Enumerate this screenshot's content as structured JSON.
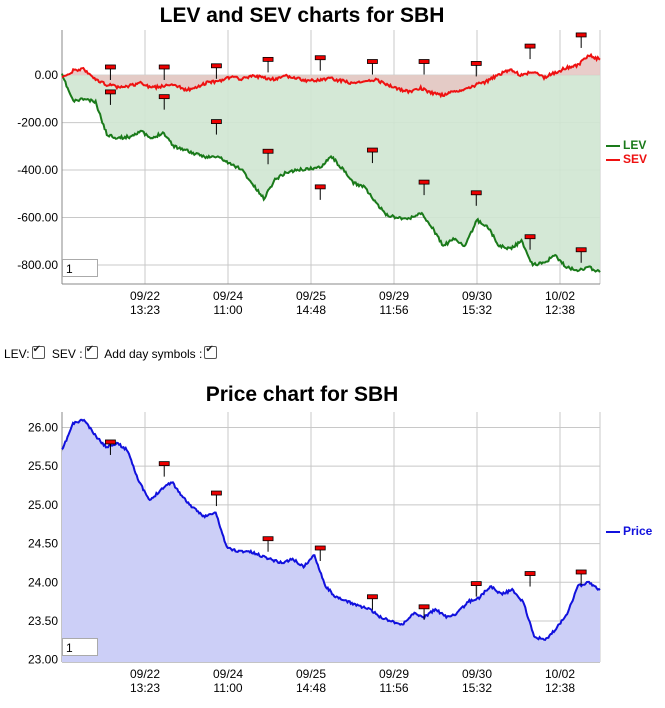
{
  "chart1": {
    "title": "LEV and SEV charts for SBH",
    "range_value": "1",
    "legend": [
      {
        "label": "LEV",
        "color": "#1a7a1a"
      },
      {
        "label": "SEV",
        "color": "#ee1111"
      }
    ]
  },
  "chart2": {
    "title": "Price chart for SBH",
    "range_value": "1",
    "legend": [
      {
        "label": "Price",
        "color": "#1111dd"
      }
    ]
  },
  "controls": {
    "lev_label": "LEV:",
    "sev_label": "SEV :",
    "day_label": "Add day symbols :"
  },
  "chart_data": [
    {
      "type": "area",
      "title": "LEV and SEV charts for SBH",
      "x_tick_labels": [
        [
          "09/22",
          "13:23"
        ],
        [
          "09/24",
          "11:00"
        ],
        [
          "09/25",
          "14:48"
        ],
        [
          "09/29",
          "11:56"
        ],
        [
          "09/30",
          "15:32"
        ],
        [
          "10/02",
          "12:38"
        ]
      ],
      "y_tick_labels": [
        "0.00",
        "-200.00",
        "-400.00",
        "-600.00",
        "-800.00"
      ],
      "ylim": [
        -880,
        190
      ],
      "grid": true,
      "legend_position": "right",
      "series": [
        {
          "name": "LEV",
          "color": "#1a7a1a",
          "fill": "#cfe6d2",
          "values": [
            0,
            -110,
            -100,
            -115,
            -250,
            -265,
            -260,
            -235,
            -270,
            -240,
            -300,
            -315,
            -335,
            -345,
            -345,
            -375,
            -395,
            -460,
            -520,
            -440,
            -410,
            -400,
            -395,
            -390,
            -340,
            -395,
            -455,
            -470,
            -540,
            -590,
            -600,
            -605,
            -580,
            -640,
            -720,
            -690,
            -720,
            -610,
            -640,
            -720,
            -730,
            -700,
            -800,
            -790,
            -760,
            -810,
            -820,
            -810,
            -830
          ]
        },
        {
          "name": "SEV",
          "color": "#ee1111",
          "fill": "#e6c8c4",
          "values": [
            -15,
            20,
            25,
            -20,
            -40,
            -50,
            -45,
            -35,
            -55,
            -45,
            -40,
            -60,
            -55,
            -30,
            -25,
            -10,
            -15,
            -5,
            -10,
            -20,
            -5,
            -15,
            -25,
            -20,
            -15,
            -25,
            -35,
            -30,
            -20,
            -40,
            -60,
            -70,
            -55,
            -75,
            -85,
            -70,
            -60,
            -40,
            -25,
            5,
            20,
            0,
            15,
            -10,
            10,
            30,
            40,
            85,
            65
          ]
        }
      ],
      "day_markers": [
        [
          0.09,
          30
        ],
        [
          0.19,
          30
        ],
        [
          0.287,
          35
        ],
        [
          0.383,
          62
        ],
        [
          0.48,
          69
        ],
        [
          0.577,
          53
        ],
        [
          0.673,
          53
        ],
        [
          0.77,
          45
        ],
        [
          0.87,
          118
        ],
        [
          0.965,
          165
        ],
        [
          0.09,
          -75
        ],
        [
          0.19,
          -95
        ],
        [
          0.287,
          -200
        ],
        [
          0.383,
          -325
        ],
        [
          0.48,
          -475
        ],
        [
          0.577,
          -320
        ],
        [
          0.673,
          -455
        ],
        [
          0.77,
          -500
        ],
        [
          0.87,
          -685
        ],
        [
          0.965,
          -740
        ]
      ]
    },
    {
      "type": "area",
      "title": "Price chart for SBH",
      "x_tick_labels": [
        [
          "09/22",
          "13:23"
        ],
        [
          "09/24",
          "11:00"
        ],
        [
          "09/25",
          "14:48"
        ],
        [
          "09/29",
          "11:56"
        ],
        [
          "09/30",
          "15:32"
        ],
        [
          "10/02",
          "12:38"
        ]
      ],
      "y_tick_labels": [
        "26.00",
        "25.50",
        "25.00",
        "24.50",
        "24.00",
        "23.50",
        "23.00"
      ],
      "ylim": [
        22.97,
        26.2
      ],
      "grid": true,
      "legend_position": "right",
      "series": [
        {
          "name": "Price",
          "color": "#1111dd",
          "fill": "#cccff7",
          "values": [
            25.7,
            26.05,
            26.1,
            25.9,
            25.75,
            25.8,
            25.7,
            25.3,
            25.05,
            25.2,
            25.3,
            25.1,
            24.95,
            24.85,
            24.9,
            24.45,
            24.4,
            24.4,
            24.35,
            24.3,
            24.25,
            24.3,
            24.2,
            24.35,
            23.95,
            23.8,
            23.75,
            23.7,
            23.65,
            23.55,
            23.5,
            23.45,
            23.6,
            23.55,
            23.65,
            23.55,
            23.6,
            23.75,
            23.8,
            23.95,
            23.85,
            23.9,
            23.75,
            23.3,
            23.25,
            23.4,
            23.6,
            23.95,
            24.0,
            23.9
          ]
        }
      ],
      "day_markers": [
        [
          0.09,
          25.8
        ],
        [
          0.19,
          25.52
        ],
        [
          0.287,
          25.14
        ],
        [
          0.383,
          24.55
        ],
        [
          0.48,
          24.43
        ],
        [
          0.577,
          23.8
        ],
        [
          0.673,
          23.67
        ],
        [
          0.77,
          23.97
        ],
        [
          0.87,
          24.1
        ],
        [
          0.965,
          24.12
        ]
      ]
    }
  ]
}
